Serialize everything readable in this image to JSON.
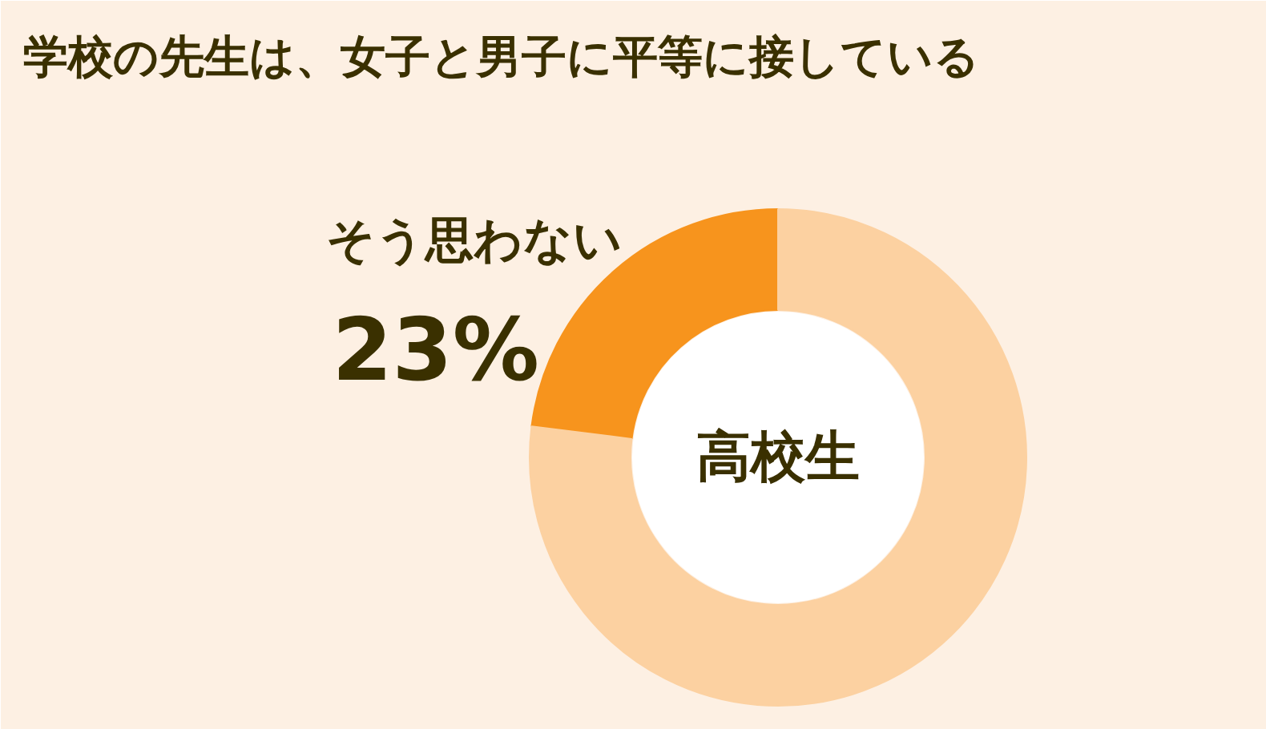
{
  "chart_data": {
    "type": "donut",
    "title": "学校の先生は、女子と男子に平等に接している",
    "categories": [
      "そう思わない",
      null
    ],
    "values": [
      23,
      77
    ],
    "colors": [
      "#f7941d",
      "#fcd1a1"
    ],
    "value_labels": [
      "23%",
      null
    ],
    "annotations": [
      "高校生"
    ]
  }
}
